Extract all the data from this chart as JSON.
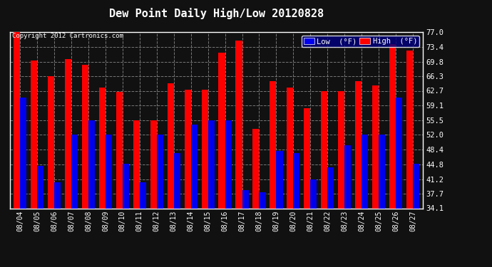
{
  "title": "Dew Point Daily High/Low 20120828",
  "copyright": "Copyright 2012 Cartronics.com",
  "dates": [
    "08/04",
    "08/05",
    "08/06",
    "08/07",
    "08/08",
    "08/09",
    "08/10",
    "08/11",
    "08/12",
    "08/13",
    "08/14",
    "08/15",
    "08/16",
    "08/17",
    "08/18",
    "08/19",
    "08/20",
    "08/21",
    "08/22",
    "08/23",
    "08/24",
    "08/25",
    "08/26",
    "08/27"
  ],
  "high": [
    77.0,
    70.0,
    66.3,
    70.5,
    69.0,
    63.5,
    62.5,
    55.5,
    55.5,
    64.5,
    63.0,
    63.0,
    72.0,
    75.0,
    53.5,
    65.0,
    63.5,
    58.5,
    62.7,
    62.7,
    65.0,
    64.0,
    74.0,
    72.5
  ],
  "low": [
    61.0,
    44.5,
    40.5,
    52.0,
    55.5,
    52.0,
    45.0,
    40.5,
    52.0,
    47.5,
    54.5,
    55.5,
    55.5,
    38.5,
    38.0,
    48.0,
    47.5,
    41.2,
    44.0,
    49.5,
    52.0,
    52.0,
    61.0,
    45.0
  ],
  "high_color": "#ff0000",
  "low_color": "#0000ee",
  "bg_color": "#111111",
  "plot_bg_color": "#111111",
  "grid_color": "#777777",
  "text_color": "#ffffff",
  "border_color": "#ffffff",
  "ylim_min": 34.1,
  "ylim_max": 77.0,
  "yticks": [
    34.1,
    37.7,
    41.2,
    44.8,
    48.4,
    52.0,
    55.5,
    59.1,
    62.7,
    66.3,
    69.8,
    73.4,
    77.0
  ],
  "legend_low_label": "Low  (°F)",
  "legend_high_label": "High  (°F)",
  "bar_width": 0.38
}
